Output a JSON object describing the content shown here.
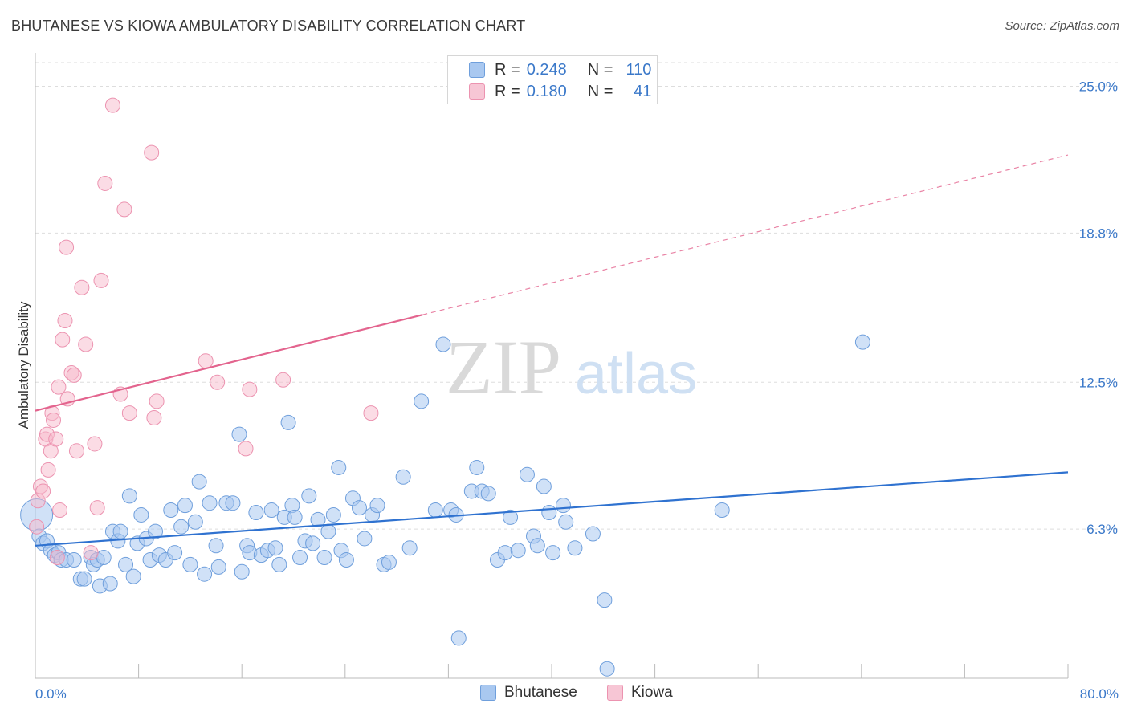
{
  "title": "BHUTANESE VS KIOWA AMBULATORY DISABILITY CORRELATION CHART",
  "source": "Source: ZipAtlas.com",
  "watermark": {
    "zip": "ZIP",
    "atlas": "atlas"
  },
  "legend_top": [
    {
      "r_label": "R =",
      "r_value": "0.248",
      "n_label": "N =",
      "n_value": "110"
    },
    {
      "r_label": "R =",
      "r_value": "0.180",
      "n_label": "N =",
      "n_value": "41"
    }
  ],
  "legend_bottom": [
    "Bhutanese",
    "Kiowa"
  ],
  "colors": {
    "blue_fill": "#a9c8f0",
    "blue_stroke": "#6f9fdc",
    "blue_line": "#2f72d0",
    "pink_fill": "#f7b9cc",
    "pink_stroke": "#ec93b0",
    "pink_line": "#e3648e",
    "axis_label": "#3a78c9",
    "grid": "#dddddd"
  },
  "chart_data": {
    "type": "scatter",
    "title": "BHUTANESE VS KIOWA AMBULATORY DISABILITY CORRELATION CHART",
    "xlabel": "",
    "ylabel": "Ambulatory Disability",
    "xlim": [
      0,
      80
    ],
    "ylim": [
      0,
      26
    ],
    "x_tick_labels": [
      "0.0%",
      "80.0%"
    ],
    "y_ticks": [
      6.3,
      12.5,
      18.8,
      25.0
    ],
    "y_tick_labels": [
      "6.3%",
      "12.5%",
      "18.8%",
      "25.0%"
    ],
    "grid": true,
    "legend_position": "top-center",
    "series": [
      {
        "name": "Bhutanese",
        "r": 0.248,
        "n": 110,
        "trend": {
          "x": [
            0,
            80
          ],
          "y": [
            5.6,
            8.7
          ],
          "dashed_from": null
        },
        "points": [
          [
            0.1,
            6.9
          ],
          [
            0.3,
            6.0
          ],
          [
            0.6,
            5.7
          ],
          [
            0.9,
            5.8
          ],
          [
            1.2,
            5.4
          ],
          [
            1.5,
            5.2
          ],
          [
            1.8,
            5.3
          ],
          [
            2.0,
            5.0
          ],
          [
            2.4,
            5.0
          ],
          [
            3.0,
            5.0
          ],
          [
            3.5,
            4.2
          ],
          [
            3.8,
            4.2
          ],
          [
            4.3,
            5.1
          ],
          [
            4.5,
            4.8
          ],
          [
            4.8,
            5.0
          ],
          [
            5.0,
            3.9
          ],
          [
            5.3,
            5.1
          ],
          [
            5.8,
            4.0
          ],
          [
            6.0,
            6.2
          ],
          [
            6.4,
            5.8
          ],
          [
            6.6,
            6.2
          ],
          [
            7.0,
            4.8
          ],
          [
            7.3,
            7.7
          ],
          [
            7.6,
            4.3
          ],
          [
            7.9,
            5.7
          ],
          [
            8.2,
            6.9
          ],
          [
            8.6,
            5.9
          ],
          [
            8.9,
            5.0
          ],
          [
            9.3,
            6.2
          ],
          [
            9.6,
            5.2
          ],
          [
            10.1,
            5.0
          ],
          [
            10.5,
            7.1
          ],
          [
            10.8,
            5.3
          ],
          [
            11.3,
            6.4
          ],
          [
            11.6,
            7.3
          ],
          [
            12.0,
            4.8
          ],
          [
            12.4,
            6.6
          ],
          [
            12.7,
            8.3
          ],
          [
            13.1,
            4.4
          ],
          [
            13.5,
            7.4
          ],
          [
            14.0,
            5.6
          ],
          [
            14.2,
            4.7
          ],
          [
            14.8,
            7.4
          ],
          [
            15.3,
            7.4
          ],
          [
            15.8,
            10.3
          ],
          [
            16.0,
            4.5
          ],
          [
            16.4,
            5.6
          ],
          [
            16.6,
            5.3
          ],
          [
            17.1,
            7.0
          ],
          [
            17.5,
            5.2
          ],
          [
            18.0,
            5.4
          ],
          [
            18.3,
            7.1
          ],
          [
            18.6,
            5.5
          ],
          [
            18.9,
            4.8
          ],
          [
            19.3,
            6.8
          ],
          [
            19.6,
            10.8
          ],
          [
            19.9,
            7.3
          ],
          [
            20.1,
            6.8
          ],
          [
            20.5,
            5.1
          ],
          [
            20.9,
            5.8
          ],
          [
            21.2,
            7.7
          ],
          [
            21.5,
            5.7
          ],
          [
            21.9,
            6.7
          ],
          [
            22.4,
            5.1
          ],
          [
            22.7,
            6.2
          ],
          [
            23.1,
            6.9
          ],
          [
            23.5,
            8.9
          ],
          [
            23.7,
            5.4
          ],
          [
            24.1,
            5.0
          ],
          [
            24.6,
            7.6
          ],
          [
            25.1,
            7.2
          ],
          [
            25.5,
            5.9
          ],
          [
            26.1,
            6.9
          ],
          [
            26.5,
            7.3
          ],
          [
            27.0,
            4.8
          ],
          [
            27.4,
            4.9
          ],
          [
            28.5,
            8.5
          ],
          [
            29.0,
            5.5
          ],
          [
            29.9,
            11.7
          ],
          [
            31.0,
            7.1
          ],
          [
            31.6,
            14.1
          ],
          [
            32.2,
            7.1
          ],
          [
            32.6,
            6.9
          ],
          [
            32.8,
            1.7
          ],
          [
            33.8,
            7.9
          ],
          [
            34.2,
            8.9
          ],
          [
            34.6,
            7.9
          ],
          [
            35.1,
            7.8
          ],
          [
            35.8,
            5.0
          ],
          [
            36.4,
            5.3
          ],
          [
            36.8,
            6.8
          ],
          [
            37.4,
            5.4
          ],
          [
            38.1,
            8.6
          ],
          [
            38.6,
            6.0
          ],
          [
            38.9,
            5.6
          ],
          [
            39.4,
            8.1
          ],
          [
            39.8,
            7.0
          ],
          [
            40.1,
            5.3
          ],
          [
            40.9,
            7.3
          ],
          [
            41.1,
            6.6
          ],
          [
            41.8,
            5.5
          ],
          [
            43.2,
            6.1
          ],
          [
            44.1,
            3.3
          ],
          [
            44.3,
            0.4
          ],
          [
            53.2,
            7.1
          ],
          [
            64.1,
            14.2
          ]
        ]
      },
      {
        "name": "Kiowa",
        "r": 0.18,
        "n": 41,
        "trend": {
          "x": [
            0,
            80
          ],
          "y": [
            11.3,
            22.1
          ],
          "dashed_from": 30
        },
        "points": [
          [
            0.1,
            6.4
          ],
          [
            0.2,
            7.5
          ],
          [
            0.4,
            8.1
          ],
          [
            0.6,
            7.9
          ],
          [
            0.8,
            10.1
          ],
          [
            0.9,
            10.3
          ],
          [
            1.0,
            8.8
          ],
          [
            1.2,
            9.6
          ],
          [
            1.3,
            11.2
          ],
          [
            1.4,
            10.9
          ],
          [
            1.6,
            10.1
          ],
          [
            1.7,
            5.1
          ],
          [
            1.8,
            12.3
          ],
          [
            1.9,
            7.1
          ],
          [
            2.1,
            14.3
          ],
          [
            2.3,
            15.1
          ],
          [
            2.4,
            18.2
          ],
          [
            2.5,
            11.8
          ],
          [
            2.8,
            12.9
          ],
          [
            3.0,
            12.8
          ],
          [
            3.2,
            9.6
          ],
          [
            3.6,
            16.5
          ],
          [
            3.9,
            14.1
          ],
          [
            4.3,
            5.3
          ],
          [
            4.6,
            9.9
          ],
          [
            4.8,
            7.2
          ],
          [
            5.1,
            16.8
          ],
          [
            5.4,
            20.9
          ],
          [
            6.0,
            24.2
          ],
          [
            6.6,
            12.0
          ],
          [
            6.9,
            19.8
          ],
          [
            7.3,
            11.2
          ],
          [
            9.0,
            22.2
          ],
          [
            9.2,
            11.0
          ],
          [
            9.4,
            11.7
          ],
          [
            13.2,
            13.4
          ],
          [
            14.1,
            12.5
          ],
          [
            16.3,
            9.7
          ],
          [
            16.6,
            12.2
          ],
          [
            19.2,
            12.6
          ],
          [
            26.0,
            11.2
          ]
        ]
      }
    ]
  }
}
